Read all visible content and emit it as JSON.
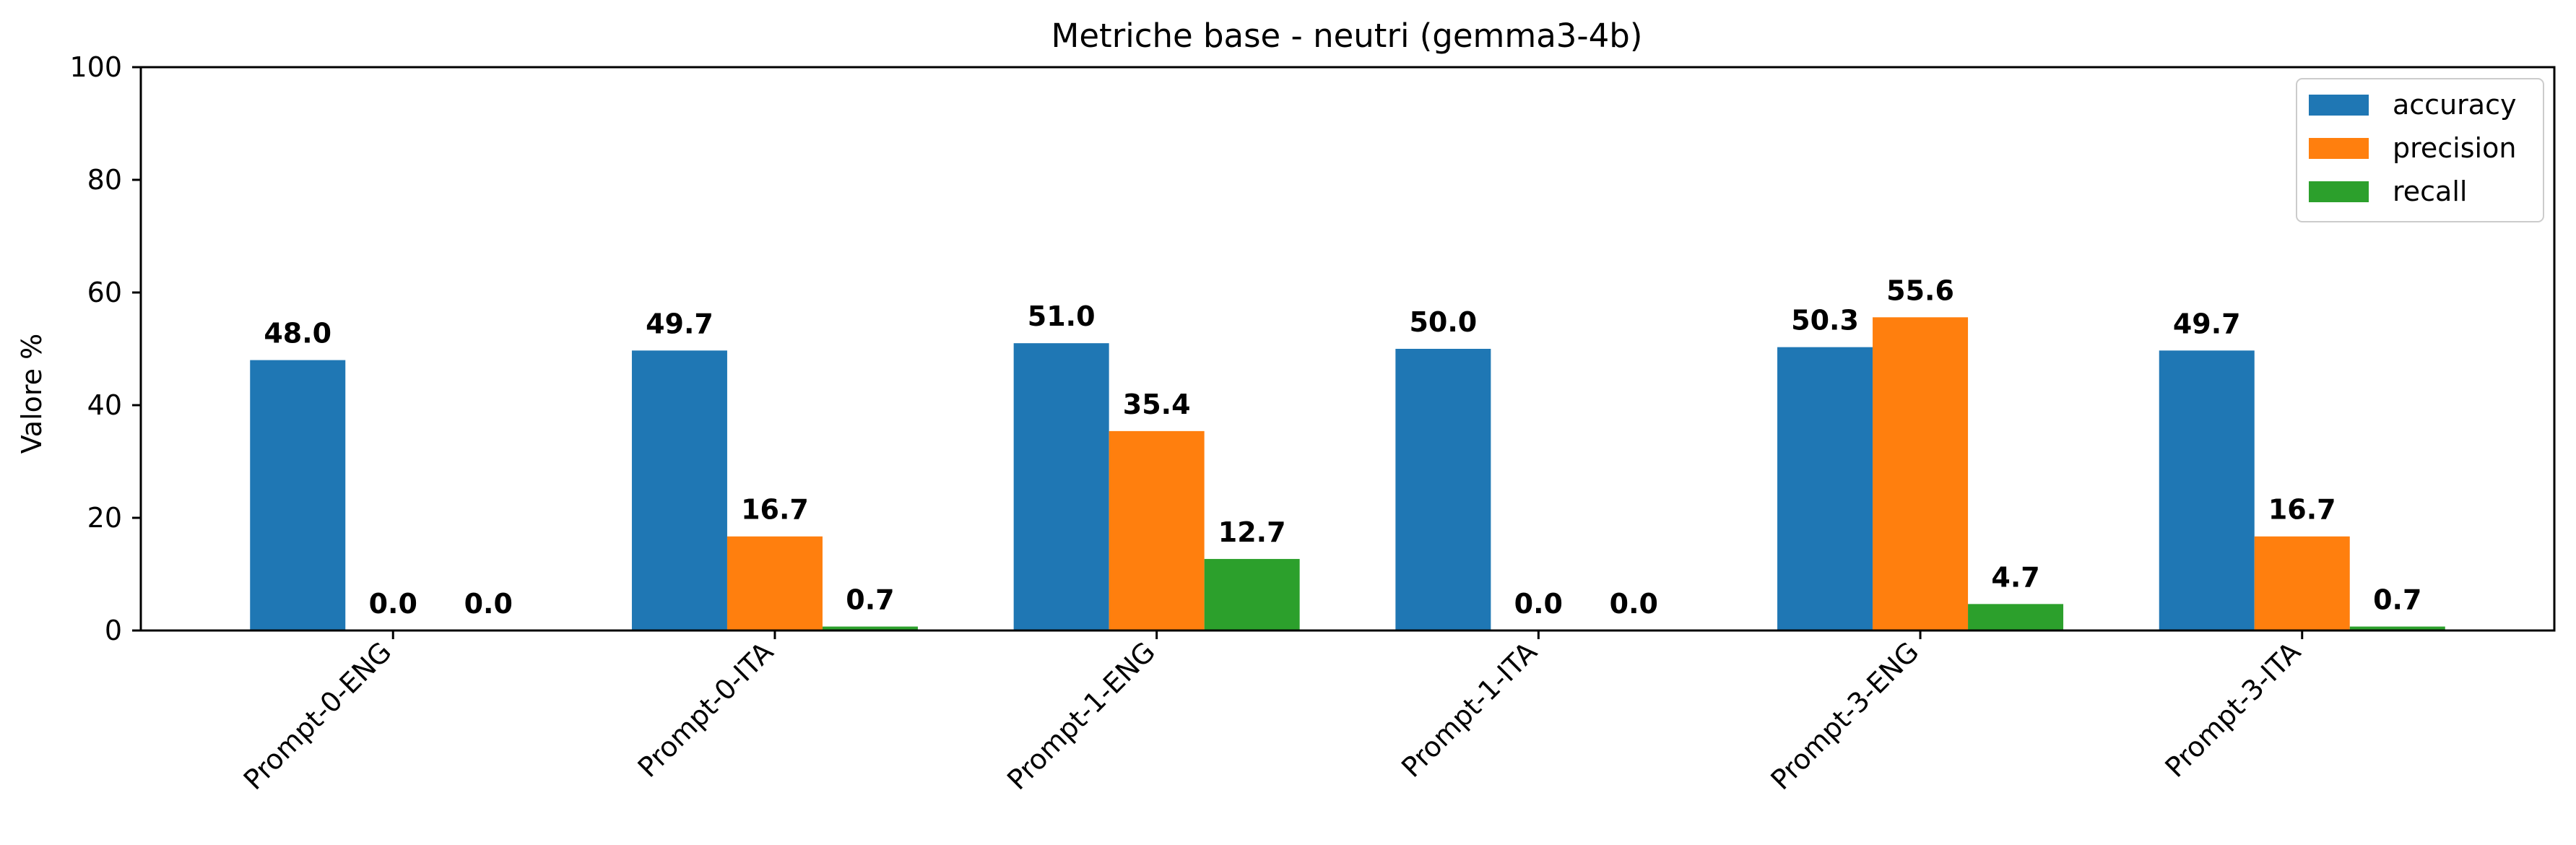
{
  "chart_data": {
    "type": "bar",
    "title": "Metriche base - neutri (gemma3-4b)",
    "xlabel": "",
    "ylabel": "Valore %",
    "ylim": [
      0,
      100
    ],
    "yticks": [
      0,
      20,
      40,
      60,
      80,
      100
    ],
    "categories": [
      "Prompt-0-ENG",
      "Prompt-0-ITA",
      "Prompt-1-ENG",
      "Prompt-1-ITA",
      "Prompt-3-ENG",
      "Prompt-3-ITA"
    ],
    "series": [
      {
        "name": "accuracy",
        "color": "#1f77b4",
        "values": [
          48.0,
          49.7,
          51.0,
          50.0,
          50.3,
          49.7
        ]
      },
      {
        "name": "precision",
        "color": "#ff7f0e",
        "values": [
          0.0,
          16.7,
          35.4,
          0.0,
          55.6,
          16.7
        ]
      },
      {
        "name": "recall",
        "color": "#2ca02c",
        "values": [
          0.0,
          0.7,
          12.7,
          0.0,
          4.7,
          0.7
        ]
      }
    ],
    "grid": false,
    "legend_position": "top-right",
    "data_labels": true
  }
}
